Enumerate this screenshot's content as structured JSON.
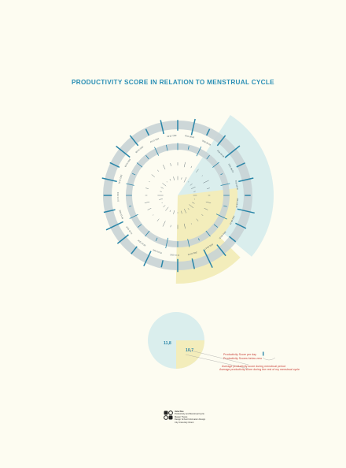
{
  "title": "PRODUCTIVITY SCORE IN RELATION TO MENSTRUAL CYCLE",
  "colors": {
    "background": "#fdfcf1",
    "disc": "#daeeed",
    "ring": "#c8d3d5",
    "menstrual": "#f3edbb",
    "tick": "#2a86a8",
    "title": "#2a8fb5",
    "legend": "#c9423a"
  },
  "chart_data": [
    {
      "type": "radial-spiral",
      "title": "PRODUCTIVITY SCORE IN RELATION TO MENSTRUAL CYCLE",
      "date_labels": [
        "2011-08-02",
        "2011-08-09",
        "2011-08-16",
        "2011-08-23",
        "2011-08-30",
        "2011-09-06",
        "2011-09-13",
        "2011-09-20",
        "2011-09-27",
        "2011-10-04",
        "2011-10-11",
        "2011-10-18",
        "2011-10-25",
        "2011-11-01",
        "2011-11-08",
        "2011-11-15",
        "2011-11-22",
        "2011-11-29",
        "2011-12-06",
        "2011-12-13",
        "2011-12-20"
      ],
      "cycles": [
        {
          "name": "cycle-1",
          "scores": [
            4,
            2,
            6,
            1,
            3,
            5,
            2,
            4,
            1,
            3,
            6,
            2,
            5,
            3,
            1,
            4,
            2,
            5,
            3,
            1,
            4,
            6,
            2,
            3,
            5,
            1,
            2,
            4
          ]
        },
        {
          "name": "cycle-2",
          "scores": [
            3,
            5,
            2,
            4,
            1,
            6,
            3,
            2,
            5,
            4,
            2,
            3,
            1,
            5,
            4,
            2,
            6,
            3,
            1,
            4,
            5,
            2,
            3,
            1,
            4,
            2,
            5,
            3
          ]
        },
        {
          "name": "cycle-3",
          "scores": [
            6,
            3,
            9,
            4,
            7,
            2,
            8,
            5,
            3,
            10,
            4,
            6,
            2,
            7,
            5,
            9,
            3,
            6,
            4,
            8,
            2,
            5,
            7,
            3,
            6,
            4,
            8,
            5
          ]
        },
        {
          "name": "cycle-4",
          "scores": [
            9,
            14,
            6,
            11,
            16,
            8,
            13,
            5,
            15,
            10,
            7,
            12,
            17,
            9,
            11,
            6,
            14,
            8,
            12,
            16,
            10,
            7,
            13,
            9,
            15,
            11,
            6,
            12
          ]
        }
      ],
      "menstrual_days": 7
    },
    {
      "type": "pie",
      "slices": [
        {
          "label": "Average productivity score during menstrual period",
          "value": 10.7
        },
        {
          "label": "Average productivity score during the rest of my menstrual cycle",
          "value": 11.8
        }
      ]
    }
  ],
  "summary": {
    "value_rest": "11,8",
    "value_period": "10,7"
  },
  "legend": {
    "score_per_day": "Productivity Score per day",
    "score_below_zero": "Productivity Scores below zero",
    "avg_period": "Average productivity score during menstrual period",
    "avg_rest": "Average productivity score during the rest of my menstrual cycle"
  },
  "credit": {
    "line1": "Jane Doe",
    "line2": "Productivity and Menstrual Cycle",
    "line3": "Master Thesis",
    "line4": "Design School Information Design",
    "line5": "City University Ghent"
  }
}
